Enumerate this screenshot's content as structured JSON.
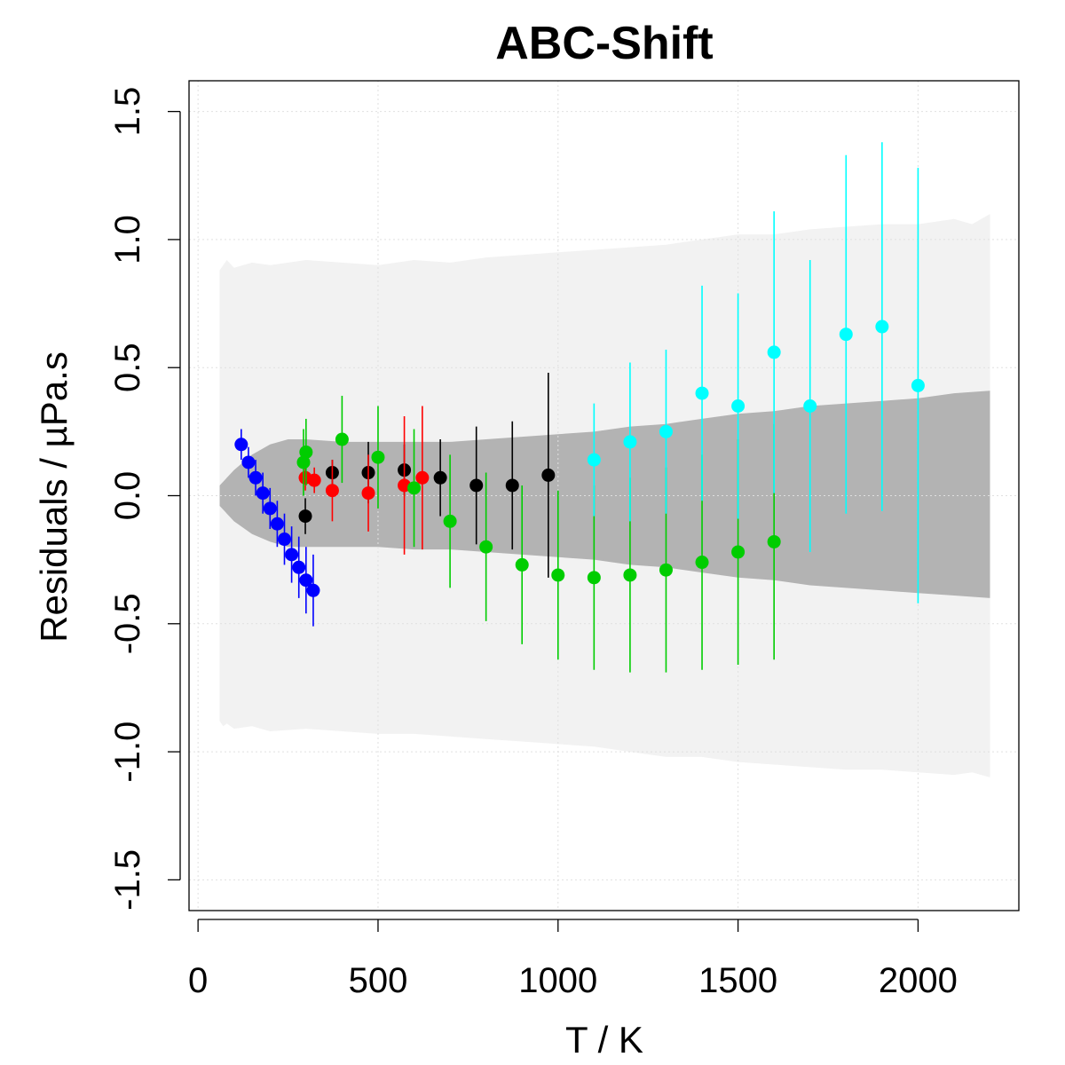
{
  "chart_data": {
    "type": "scatter",
    "title": "ABC-Shift",
    "xlabel": "T / K",
    "ylabel": "Residuals / µPa.s",
    "xlim": [
      -25,
      2280
    ],
    "ylim": [
      -1.62,
      1.62
    ],
    "xticks": [
      0,
      500,
      1000,
      1500,
      2000
    ],
    "xtick_labels": [
      "0",
      "500",
      "1000",
      "1500",
      "2000"
    ],
    "yticks": [
      -1.5,
      -1.0,
      -0.5,
      0.0,
      0.5,
      1.0,
      1.5
    ],
    "ytick_labels": [
      "-1.5",
      "-1.0",
      "-0.5",
      "0.0",
      "0.5",
      "1.0",
      "1.5"
    ],
    "grid": true,
    "bands": {
      "outer": {
        "color": "#f2f2f2",
        "x": [
          60,
          70,
          80,
          100,
          150,
          200,
          300,
          400,
          500,
          600,
          700,
          800,
          900,
          1000,
          1100,
          1200,
          1300,
          1400,
          1500,
          1600,
          1700,
          1800,
          1900,
          2000,
          2100,
          2150,
          2200
        ],
        "upper": [
          0.88,
          0.9,
          0.92,
          0.89,
          0.91,
          0.9,
          0.92,
          0.91,
          0.9,
          0.92,
          0.91,
          0.93,
          0.94,
          0.95,
          0.96,
          0.97,
          0.98,
          1.0,
          1.02,
          1.02,
          1.04,
          1.05,
          1.06,
          1.06,
          1.08,
          1.06,
          1.1
        ],
        "lower": [
          -0.88,
          -0.9,
          -0.89,
          -0.91,
          -0.9,
          -0.92,
          -0.91,
          -0.92,
          -0.93,
          -0.93,
          -0.94,
          -0.95,
          -0.96,
          -0.97,
          -0.98,
          -1.0,
          -1.02,
          -1.02,
          -1.04,
          -1.05,
          -1.06,
          -1.07,
          -1.07,
          -1.08,
          -1.09,
          -1.08,
          -1.1
        ]
      },
      "inner": {
        "color": "#b3b3b3",
        "x": [
          60,
          80,
          100,
          150,
          200,
          250,
          300,
          400,
          500,
          600,
          700,
          800,
          900,
          1000,
          1100,
          1200,
          1300,
          1400,
          1500,
          1600,
          1700,
          1800,
          1900,
          2000,
          2100,
          2200
        ],
        "upper": [
          0.04,
          0.07,
          0.1,
          0.16,
          0.2,
          0.22,
          0.22,
          0.21,
          0.21,
          0.21,
          0.21,
          0.22,
          0.23,
          0.24,
          0.25,
          0.27,
          0.28,
          0.3,
          0.32,
          0.33,
          0.35,
          0.36,
          0.37,
          0.38,
          0.4,
          0.41
        ],
        "lower": [
          -0.04,
          -0.07,
          -0.1,
          -0.15,
          -0.18,
          -0.2,
          -0.2,
          -0.2,
          -0.2,
          -0.21,
          -0.21,
          -0.22,
          -0.23,
          -0.24,
          -0.25,
          -0.27,
          -0.28,
          -0.3,
          -0.32,
          -0.33,
          -0.35,
          -0.36,
          -0.37,
          -0.38,
          -0.39,
          -0.4
        ]
      }
    },
    "series": [
      {
        "color": "#0000ff",
        "points": [
          {
            "x": 120,
            "y": 0.2,
            "err": 0.06
          },
          {
            "x": 140,
            "y": 0.13,
            "err": 0.06
          },
          {
            "x": 160,
            "y": 0.07,
            "err": 0.07
          },
          {
            "x": 180,
            "y": 0.01,
            "err": 0.08
          },
          {
            "x": 200,
            "y": -0.05,
            "err": 0.08
          },
          {
            "x": 220,
            "y": -0.11,
            "err": 0.09
          },
          {
            "x": 240,
            "y": -0.17,
            "err": 0.1
          },
          {
            "x": 260,
            "y": -0.23,
            "err": 0.11
          },
          {
            "x": 280,
            "y": -0.28,
            "err": 0.12
          },
          {
            "x": 300,
            "y": -0.33,
            "err": 0.13
          },
          {
            "x": 320,
            "y": -0.37,
            "err": 0.14
          }
        ]
      },
      {
        "color": "#000000",
        "points": [
          {
            "x": 298,
            "y": -0.08,
            "err": 0.07
          },
          {
            "x": 373,
            "y": 0.09,
            "err": 0.05
          },
          {
            "x": 473,
            "y": 0.09,
            "err": 0.12
          },
          {
            "x": 573,
            "y": 0.1,
            "err": 0.1
          },
          {
            "x": 673,
            "y": 0.07,
            "err": 0.15
          },
          {
            "x": 773,
            "y": 0.04,
            "err": 0.23
          },
          {
            "x": 873,
            "y": 0.04,
            "err": 0.25
          },
          {
            "x": 973,
            "y": 0.08,
            "err": 0.4
          }
        ]
      },
      {
        "color": "#ff0000",
        "points": [
          {
            "x": 298,
            "y": 0.07,
            "err": 0.05
          },
          {
            "x": 323,
            "y": 0.06,
            "err": 0.05
          },
          {
            "x": 373,
            "y": 0.02,
            "err": 0.12
          },
          {
            "x": 473,
            "y": 0.01,
            "err": 0.15
          },
          {
            "x": 573,
            "y": 0.04,
            "err": 0.27
          },
          {
            "x": 623,
            "y": 0.07,
            "err": 0.28
          }
        ]
      },
      {
        "color": "#00cd00",
        "points": [
          {
            "x": 293,
            "y": 0.13,
            "err": 0.13
          },
          {
            "x": 300,
            "y": 0.17,
            "err": 0.13
          },
          {
            "x": 400,
            "y": 0.22,
            "err": 0.17
          },
          {
            "x": 500,
            "y": 0.15,
            "err": 0.2
          },
          {
            "x": 600,
            "y": 0.03,
            "err": 0.23
          },
          {
            "x": 700,
            "y": -0.1,
            "err": 0.26
          },
          {
            "x": 800,
            "y": -0.2,
            "err": 0.29
          },
          {
            "x": 900,
            "y": -0.27,
            "err": 0.31
          },
          {
            "x": 1000,
            "y": -0.31,
            "err": 0.33
          },
          {
            "x": 1100,
            "y": -0.32,
            "err": 0.36
          },
          {
            "x": 1200,
            "y": -0.31,
            "err": 0.38
          },
          {
            "x": 1300,
            "y": -0.29,
            "err": 0.4
          },
          {
            "x": 1400,
            "y": -0.26,
            "err": 0.42
          },
          {
            "x": 1500,
            "y": -0.22,
            "err": 0.44
          },
          {
            "x": 1600,
            "y": -0.18,
            "err": 0.46
          }
        ]
      },
      {
        "color": "#00ffff",
        "points": [
          {
            "x": 1100,
            "y": 0.14,
            "err": 0.22
          },
          {
            "x": 1200,
            "y": 0.21,
            "err": 0.31
          },
          {
            "x": 1300,
            "y": 0.25,
            "err": 0.32
          },
          {
            "x": 1400,
            "y": 0.4,
            "err": 0.42
          },
          {
            "x": 1500,
            "y": 0.35,
            "err": 0.44
          },
          {
            "x": 1600,
            "y": 0.56,
            "err": 0.55
          },
          {
            "x": 1700,
            "y": 0.35,
            "err": 0.57
          },
          {
            "x": 1800,
            "y": 0.63,
            "err": 0.7
          },
          {
            "x": 1900,
            "y": 0.66,
            "err": 0.72
          },
          {
            "x": 2000,
            "y": 0.43,
            "err": 0.85
          }
        ]
      }
    ]
  }
}
